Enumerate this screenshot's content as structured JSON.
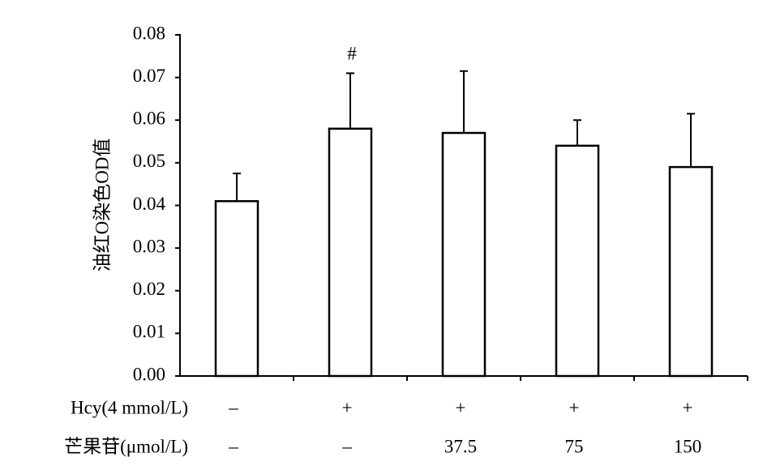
{
  "chart_data": {
    "type": "bar",
    "ylabel": "油红O染色OD值",
    "values": [
      0.041,
      0.058,
      0.057,
      0.054,
      0.049
    ],
    "errors": [
      0.0065,
      0.013,
      0.0145,
      0.006,
      0.0125
    ],
    "annotations": [
      null,
      "#",
      null,
      null,
      null
    ],
    "color": "#ffffff",
    "ylim": [
      0,
      0.08
    ],
    "yticks": [
      {
        "value": 0,
        "label": "0.00"
      },
      {
        "value": 0.01,
        "label": "0.01"
      },
      {
        "value": 0.02,
        "label": "0.02"
      },
      {
        "value": 0.03,
        "label": "0.03"
      },
      {
        "value": 0.04,
        "label": "0.04"
      },
      {
        "value": 0.05,
        "label": "0.05"
      },
      {
        "value": 0.06,
        "label": "0.06"
      },
      {
        "value": 0.07,
        "label": "0.07"
      },
      {
        "value": 0.08,
        "label": "0.08"
      }
    ],
    "grid": false,
    "treatment_labels": [
      "Hcy(4 mmol/L)",
      "芒果苷(μmol/L)"
    ],
    "treatments": [
      [
        "–",
        "+",
        "+",
        "+",
        "+"
      ],
      [
        "–",
        "–",
        "37.5",
        "75",
        "150"
      ]
    ]
  }
}
